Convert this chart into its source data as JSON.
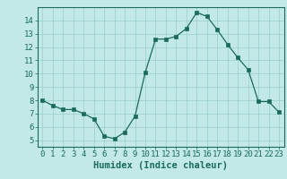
{
  "x": [
    0,
    1,
    2,
    3,
    4,
    5,
    6,
    7,
    8,
    9,
    10,
    11,
    12,
    13,
    14,
    15,
    16,
    17,
    18,
    19,
    20,
    21,
    22,
    23
  ],
  "y": [
    8.0,
    7.6,
    7.3,
    7.3,
    7.0,
    6.6,
    5.3,
    5.1,
    5.6,
    6.8,
    10.1,
    12.6,
    12.6,
    12.8,
    13.4,
    14.6,
    14.3,
    13.3,
    12.2,
    11.2,
    10.3,
    7.9,
    7.9,
    7.1
  ],
  "xlabel": "Humidex (Indice chaleur)",
  "xlim": [
    -0.5,
    23.5
  ],
  "ylim": [
    4.5,
    15.0
  ],
  "yticks": [
    5,
    6,
    7,
    8,
    9,
    10,
    11,
    12,
    13,
    14
  ],
  "xticks": [
    0,
    1,
    2,
    3,
    4,
    5,
    6,
    7,
    8,
    9,
    10,
    11,
    12,
    13,
    14,
    15,
    16,
    17,
    18,
    19,
    20,
    21,
    22,
    23
  ],
  "line_color": "#1a6b5a",
  "marker_color": "#1a6b5a",
  "bg_color": "#c2e8e8",
  "grid_color": "#99cccc",
  "axis_color": "#1a6b5a",
  "label_color": "#1a6b5a",
  "font_size": 6.5,
  "xlabel_fontsize": 7.5
}
